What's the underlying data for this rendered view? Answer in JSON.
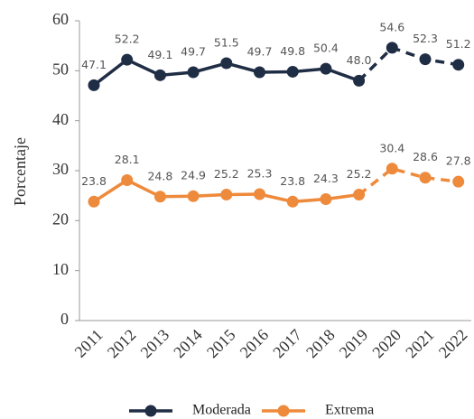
{
  "chart_data": {
    "type": "line",
    "y_label": "Porcentaje",
    "categories": [
      "2011",
      "2012",
      "2013",
      "2014",
      "2015",
      "2016",
      "2017",
      "2018",
      "2019",
      "2020",
      "2021",
      "2022"
    ],
    "series": [
      {
        "name": "Moderada",
        "color": "#1f2d45",
        "values": [
          47.1,
          52.2,
          49.1,
          49.7,
          51.5,
          49.7,
          49.8,
          50.4,
          48.0,
          54.6,
          52.3,
          51.2
        ],
        "value_labels": [
          "47.1",
          "52.2",
          "49.1",
          "49.7",
          "51.5",
          "49.7",
          "49.8",
          "50.4",
          "48.0",
          "54.6",
          "52.3",
          "51.2"
        ]
      },
      {
        "name": "Extrema",
        "color": "#ee8a3c",
        "values": [
          23.8,
          28.1,
          24.8,
          24.9,
          25.2,
          25.3,
          23.8,
          24.3,
          25.2,
          30.4,
          28.6,
          27.8
        ],
        "value_labels": [
          "23.8",
          "28.1",
          "24.8",
          "24.9",
          "25.2",
          "25.3",
          "23.8",
          "24.3",
          "25.2",
          "30.4",
          "28.6",
          "27.8"
        ]
      }
    ],
    "dashed_from": "2019",
    "ylim": [
      0,
      60
    ],
    "yticks": [
      0,
      10,
      20,
      30,
      40,
      50,
      60
    ],
    "grid": false,
    "legend": "bottom"
  }
}
